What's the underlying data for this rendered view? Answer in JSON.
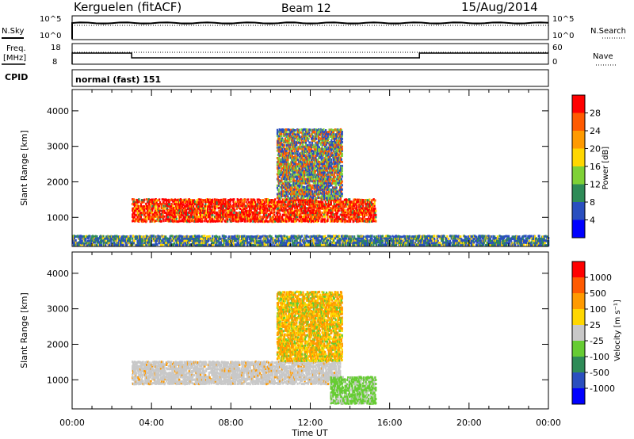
{
  "header": {
    "station": "Kerguelen (fitACF)",
    "beam": "Beam 12",
    "date": "15/Aug/2014"
  },
  "params": {
    "nsky_label": "N.Sky",
    "nsearch_label": "N.Search",
    "freq_label_line1": "Freq.",
    "freq_label_line2": "[MHz]",
    "nave_label": "Nave",
    "cpid_label": "CPID",
    "cpid_value": "normal (fast) 151",
    "noise_ticks_left": [
      "10^5",
      "10^0"
    ],
    "noise_ticks_right": [
      "10^5",
      "10^0"
    ],
    "freq_ticks_left": [
      "18",
      "8"
    ],
    "freq_ticks_right": [
      "60",
      "0"
    ]
  },
  "chart_data": [
    {
      "type": "heatmap",
      "panel": "power",
      "ylabel": "Slant Range [km]",
      "ylim": [
        180,
        4600
      ],
      "yticks": [
        "1000",
        "2000",
        "3000",
        "4000"
      ],
      "colorbar_label": "Power [dB]",
      "colorbar_ticks": [
        "28",
        "24",
        "20",
        "16",
        "12",
        "8",
        "4"
      ],
      "colorbar_colors": [
        "#0000ff",
        "#2a4fbf",
        "#2e8b57",
        "#7fd136",
        "#ffd700",
        "#ff9a00",
        "#ff5a00",
        "#ff0000"
      ],
      "echo_regions": [
        {
          "label": "main band",
          "t0": 3.0,
          "t1": 15.3,
          "r0": 850,
          "r1": 1500,
          "level": "high"
        },
        {
          "label": "upper patch",
          "t0": 10.3,
          "t1": 13.6,
          "r0": 1500,
          "r1": 3500,
          "level": "mid"
        },
        {
          "label": "near-range",
          "t0": 0.0,
          "t1": 24.0,
          "r0": 180,
          "r1": 450,
          "level": "low"
        }
      ]
    },
    {
      "type": "heatmap",
      "panel": "velocity",
      "ylabel": "Slant Range [km]",
      "xlabel": "Time UT",
      "ylim": [
        180,
        4600
      ],
      "yticks": [
        "1000",
        "2000",
        "3000",
        "4000"
      ],
      "xticks": [
        "00:00",
        "04:00",
        "08:00",
        "12:00",
        "16:00",
        "20:00",
        "00:00"
      ],
      "colorbar_label": "Velocity [m s⁻¹]",
      "colorbar_ticks": [
        "1000",
        "500",
        "100",
        "25",
        "-25",
        "-100",
        "-500",
        "-1000"
      ],
      "colorbar_colors": [
        "#0000ff",
        "#2a4fbf",
        "#2e8b57",
        "#66cc33",
        "#c8c8c8",
        "#ffd700",
        "#ff9a00",
        "#ff5a00",
        "#ff0000"
      ],
      "echo_regions": [
        {
          "label": "ground scatter band",
          "t0": 3.0,
          "t1": 13.5,
          "r0": 850,
          "r1": 1500,
          "level": "ground"
        },
        {
          "label": "green patch",
          "t0": 13.0,
          "t1": 15.3,
          "r0": 300,
          "r1": 1100,
          "level": "positive"
        },
        {
          "label": "upper patch",
          "t0": 10.3,
          "t1": 13.6,
          "r0": 1500,
          "r1": 3500,
          "level": "negative"
        }
      ]
    }
  ]
}
